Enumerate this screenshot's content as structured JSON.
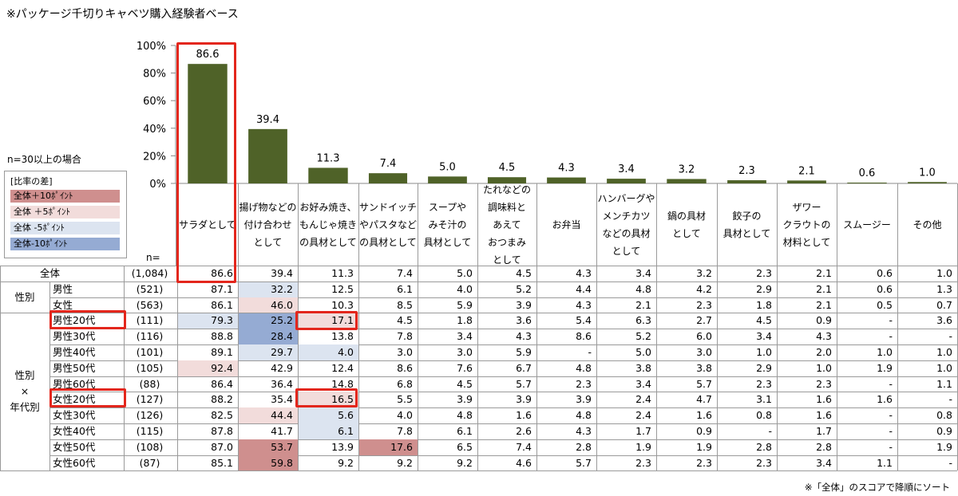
{
  "note_top": "※パッケージ千切りキャベツ購入経験者ベース",
  "n_note": "n=30以上の場合",
  "legend": {
    "title": "[比率の差]",
    "items": [
      {
        "label": "全体＋10ﾎﾟｲﾝﾄ",
        "color": "#cf8f8e"
      },
      {
        "label": "全体 ＋5ﾎﾟｲﾝﾄ",
        "color": "#f2dcdb"
      },
      {
        "label": "全体 -5ﾎﾟｲﾝﾄ",
        "color": "#dce4f0"
      },
      {
        "label": "全体-10ﾎﾟｲﾝﾄ",
        "color": "#95abd3"
      }
    ]
  },
  "n_header": "n=",
  "sort_note": "※「全体」のスコアで降順にソート",
  "chart_data": {
    "type": "bar",
    "ylim": [
      0,
      100
    ],
    "yticks": [
      "0%",
      "20%",
      "40%",
      "60%",
      "80%",
      "100%"
    ],
    "bar_color": "#4f6228",
    "categories": [
      "サラダとして",
      "揚げ物などの\n付け合わせ\nとして",
      "お好み焼き、\nもんじゃ焼き\nの具材として",
      "サンドイッチ\nやパスタなど\nの具材として",
      "スープや\nみそ汁の\n具材として",
      "たれなどの\n調味料と\nあえて\nおつまみ\nとして",
      "お弁当",
      "ハンバーグや\nメンチカツ\nなどの具材\nとして",
      "鍋の具材\nとして",
      "餃子の\n具材として",
      "ザワー\nクラウトの\n材料として",
      "スムージー",
      "その他"
    ],
    "values": [
      86.6,
      39.4,
      11.3,
      7.4,
      5.0,
      4.5,
      4.3,
      3.4,
      3.2,
      2.3,
      2.1,
      0.6,
      1.0
    ],
    "value_labels": [
      "86.6",
      "39.4",
      "11.3",
      "7.4",
      "5.0",
      "4.5",
      "4.3",
      "3.4",
      "3.2",
      "2.3",
      "2.1",
      "0.6",
      "1.0"
    ]
  },
  "table": {
    "groups": [
      {
        "label": "",
        "rows": 1
      },
      {
        "label": "性別",
        "rows": 2
      },
      {
        "label": "性別\n×\n年代別",
        "rows": 10
      }
    ],
    "rows": [
      {
        "label": "全体",
        "n": "(1,084)",
        "values": [
          "86.6",
          "39.4",
          "11.3",
          "7.4",
          "5.0",
          "4.5",
          "4.3",
          "3.4",
          "3.2",
          "2.3",
          "2.1",
          "0.6",
          "1.0"
        ],
        "shade": [
          0,
          0,
          0,
          0,
          0,
          0,
          0,
          0,
          0,
          0,
          0,
          0,
          0
        ]
      },
      {
        "label": "男性",
        "n": "(521)",
        "values": [
          "87.1",
          "32.2",
          "12.5",
          "6.1",
          "4.0",
          "5.2",
          "4.4",
          "4.8",
          "4.2",
          "2.9",
          "2.1",
          "0.6",
          "1.3"
        ],
        "shade": [
          0,
          -1,
          0,
          0,
          0,
          0,
          0,
          0,
          0,
          0,
          0,
          0,
          0
        ]
      },
      {
        "label": "女性",
        "n": "(563)",
        "values": [
          "86.1",
          "46.0",
          "10.3",
          "8.5",
          "5.9",
          "3.9",
          "4.3",
          "2.1",
          "2.3",
          "1.8",
          "2.1",
          "0.5",
          "0.7"
        ],
        "shade": [
          0,
          1,
          0,
          0,
          0,
          0,
          0,
          0,
          0,
          0,
          0,
          0,
          0
        ]
      },
      {
        "label": "男性20代",
        "n": "(111)",
        "values": [
          "79.3",
          "25.2",
          "17.1",
          "4.5",
          "1.8",
          "3.6",
          "5.4",
          "6.3",
          "2.7",
          "4.5",
          "0.9",
          "-",
          "3.6"
        ],
        "shade": [
          -1,
          -2,
          1,
          0,
          0,
          0,
          0,
          0,
          0,
          0,
          0,
          0,
          0
        ]
      },
      {
        "label": "男性30代",
        "n": "(116)",
        "values": [
          "88.8",
          "28.4",
          "13.8",
          "7.8",
          "3.4",
          "4.3",
          "8.6",
          "5.2",
          "6.0",
          "3.4",
          "4.3",
          "-",
          "-"
        ],
        "shade": [
          0,
          -2,
          0,
          0,
          0,
          0,
          0,
          0,
          0,
          0,
          0,
          0,
          0
        ]
      },
      {
        "label": "男性40代",
        "n": "(101)",
        "values": [
          "89.1",
          "29.7",
          "4.0",
          "3.0",
          "3.0",
          "5.9",
          "-",
          "5.0",
          "3.0",
          "1.0",
          "2.0",
          "1.0",
          "1.0"
        ],
        "shade": [
          0,
          -1,
          -1,
          0,
          0,
          0,
          0,
          0,
          0,
          0,
          0,
          0,
          0
        ]
      },
      {
        "label": "男性50代",
        "n": "(105)",
        "values": [
          "92.4",
          "42.9",
          "12.4",
          "8.6",
          "7.6",
          "6.7",
          "4.8",
          "3.8",
          "3.8",
          "2.9",
          "1.0",
          "1.9",
          "1.0"
        ],
        "shade": [
          1,
          0,
          0,
          0,
          0,
          0,
          0,
          0,
          0,
          0,
          0,
          0,
          0
        ]
      },
      {
        "label": "男性60代",
        "n": "(88)",
        "values": [
          "86.4",
          "36.4",
          "14.8",
          "6.8",
          "4.5",
          "5.7",
          "2.3",
          "3.4",
          "5.7",
          "2.3",
          "2.3",
          "-",
          "1.1"
        ],
        "shade": [
          0,
          0,
          0,
          0,
          0,
          0,
          0,
          0,
          0,
          0,
          0,
          0,
          0
        ]
      },
      {
        "label": "女性20代",
        "n": "(127)",
        "values": [
          "88.2",
          "35.4",
          "16.5",
          "5.5",
          "3.9",
          "3.9",
          "3.9",
          "2.4",
          "4.7",
          "3.1",
          "1.6",
          "1.6",
          "-"
        ],
        "shade": [
          0,
          0,
          1,
          0,
          0,
          0,
          0,
          0,
          0,
          0,
          0,
          0,
          0
        ]
      },
      {
        "label": "女性30代",
        "n": "(126)",
        "values": [
          "82.5",
          "44.4",
          "5.6",
          "4.0",
          "4.8",
          "1.6",
          "4.8",
          "2.4",
          "1.6",
          "0.8",
          "1.6",
          "-",
          "0.8"
        ],
        "shade": [
          0,
          1,
          -1,
          0,
          0,
          0,
          0,
          0,
          0,
          0,
          0,
          0,
          0
        ]
      },
      {
        "label": "女性40代",
        "n": "(115)",
        "values": [
          "87.8",
          "41.7",
          "6.1",
          "7.8",
          "6.1",
          "2.6",
          "4.3",
          "1.7",
          "0.9",
          "-",
          "1.7",
          "-",
          "0.9"
        ],
        "shade": [
          0,
          0,
          -1,
          0,
          0,
          0,
          0,
          0,
          0,
          0,
          0,
          0,
          0
        ]
      },
      {
        "label": "女性50代",
        "n": "(108)",
        "values": [
          "87.0",
          "53.7",
          "13.9",
          "17.6",
          "6.5",
          "7.4",
          "2.8",
          "1.9",
          "1.9",
          "2.8",
          "2.8",
          "-",
          "1.9"
        ],
        "shade": [
          0,
          2,
          0,
          2,
          0,
          0,
          0,
          0,
          0,
          0,
          0,
          0,
          0
        ]
      },
      {
        "label": "女性60代",
        "n": "(87)",
        "values": [
          "85.1",
          "59.8",
          "9.2",
          "9.2",
          "9.2",
          "4.6",
          "5.7",
          "2.3",
          "2.3",
          "2.3",
          "3.4",
          "1.1",
          "-"
        ],
        "shade": [
          0,
          2,
          0,
          0,
          0,
          0,
          0,
          0,
          0,
          0,
          0,
          0,
          0
        ]
      }
    ]
  }
}
